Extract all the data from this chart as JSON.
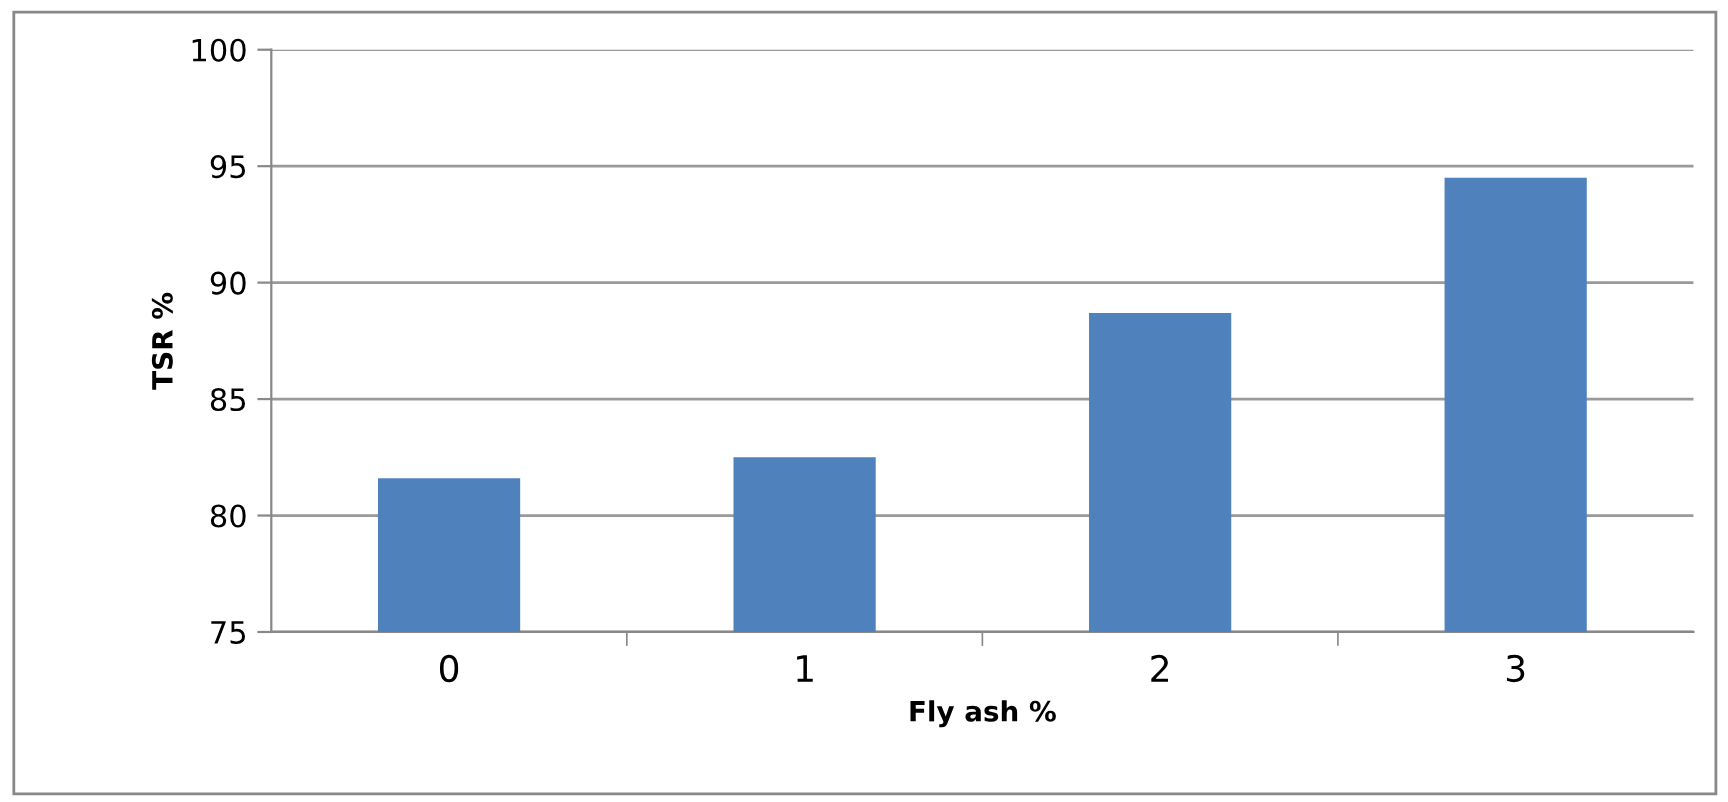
{
  "chart_data": {
    "type": "bar",
    "xlabel": "Fly ash %",
    "ylabel": "TSR %",
    "categories": [
      "0",
      "1",
      "2",
      "3"
    ],
    "values": [
      81.6,
      82.5,
      88.7,
      94.5
    ],
    "color": "#4f81bd",
    "ylim": [
      75,
      100
    ],
    "yticks": [
      75,
      80,
      85,
      90,
      95,
      100
    ],
    "grid": "y"
  }
}
